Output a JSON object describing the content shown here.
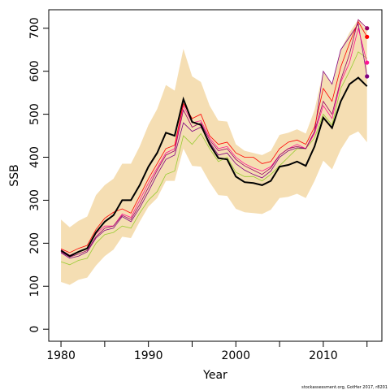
{
  "chart_data": {
    "type": "line",
    "xlabel": "Year",
    "ylabel": "SSB",
    "footnote": "stockassessment.org, GotHer 2017, r8201",
    "x": [
      1980,
      1981,
      1982,
      1983,
      1984,
      1985,
      1986,
      1987,
      1988,
      1989,
      1990,
      1991,
      1992,
      1993,
      1994,
      1995,
      1996,
      1997,
      1998,
      1999,
      2000,
      2001,
      2002,
      2003,
      2004,
      2005,
      2006,
      2007,
      2008,
      2009,
      2010,
      2011,
      2012,
      2013,
      2014,
      2015
    ],
    "xlim": [
      1978.6,
      2016.7
    ],
    "ylim": [
      -28,
      743
    ],
    "xticks": [
      1980,
      1990,
      2000,
      2010
    ],
    "xminor_ticks": [
      1985,
      1995,
      2005,
      2015
    ],
    "yticks": [
      0,
      100,
      200,
      300,
      400,
      500,
      600,
      700
    ],
    "band": {
      "color": "#f5deb3",
      "upper": [
        255,
        237,
        252,
        262,
        312,
        335,
        350,
        385,
        385,
        425,
        475,
        512,
        568,
        555,
        652,
        588,
        575,
        520,
        485,
        483,
        430,
        415,
        410,
        405,
        415,
        452,
        457,
        465,
        455,
        510,
        600,
        570,
        650,
        690,
        720,
        695
      ],
      "lower": [
        110,
        103,
        115,
        120,
        148,
        170,
        185,
        215,
        212,
        250,
        285,
        305,
        345,
        345,
        420,
        380,
        378,
        342,
        312,
        310,
        280,
        272,
        270,
        268,
        278,
        305,
        308,
        315,
        305,
        345,
        392,
        372,
        418,
        450,
        460,
        435
      ]
    },
    "series": [
      {
        "color": "#99cc33",
        "end_marker": false,
        "values": [
          157,
          150,
          160,
          165,
          200,
          220,
          225,
          240,
          235,
          270,
          300,
          320,
          360,
          368,
          450,
          430,
          455,
          420,
          390,
          400,
          365,
          355,
          355,
          345,
          360,
          380,
          400,
          420,
          420,
          445,
          500,
          475,
          560,
          600,
          645,
          630
        ]
      },
      {
        "color": "#800080",
        "end_marker": true,
        "values": [
          178,
          165,
          170,
          180,
          212,
          230,
          235,
          262,
          250,
          282,
          320,
          360,
          395,
          405,
          480,
          460,
          470,
          435,
          405,
          410,
          385,
          370,
          360,
          352,
          368,
          400,
          415,
          422,
          420,
          460,
          600,
          570,
          650,
          680,
          710,
          588
        ]
      },
      {
        "color": "#ff1493",
        "end_marker": true,
        "values": [
          185,
          172,
          180,
          188,
          222,
          240,
          240,
          268,
          260,
          300,
          340,
          375,
          410,
          420,
          520,
          480,
          485,
          445,
          420,
          425,
          400,
          385,
          375,
          368,
          378,
          405,
          420,
          430,
          420,
          455,
          520,
          490,
          575,
          620,
          700,
          620
        ]
      },
      {
        "color": "#ff0000",
        "end_marker": true,
        "values": [
          187,
          178,
          188,
          195,
          232,
          258,
          272,
          280,
          270,
          310,
          350,
          385,
          420,
          428,
          525,
          490,
          500,
          450,
          430,
          435,
          410,
          400,
          400,
          385,
          390,
          420,
          435,
          440,
          430,
          470,
          560,
          530,
          610,
          665,
          715,
          680
        ]
      },
      {
        "color": "#990066",
        "end_marker": true,
        "values": [
          180,
          168,
          175,
          183,
          215,
          235,
          240,
          265,
          255,
          290,
          330,
          370,
          405,
          415,
          510,
          470,
          480,
          440,
          415,
          420,
          395,
          380,
          370,
          360,
          375,
          405,
          420,
          425,
          420,
          460,
          530,
          500,
          580,
          640,
          720,
          700
        ]
      },
      {
        "color": "#000000",
        "width": 2,
        "end_marker": false,
        "values": [
          183,
          170,
          180,
          188,
          225,
          250,
          265,
          300,
          300,
          335,
          378,
          410,
          457,
          450,
          535,
          482,
          475,
          430,
          398,
          395,
          355,
          342,
          340,
          335,
          345,
          378,
          382,
          390,
          380,
          425,
          492,
          468,
          530,
          570,
          585,
          565
        ]
      }
    ]
  }
}
